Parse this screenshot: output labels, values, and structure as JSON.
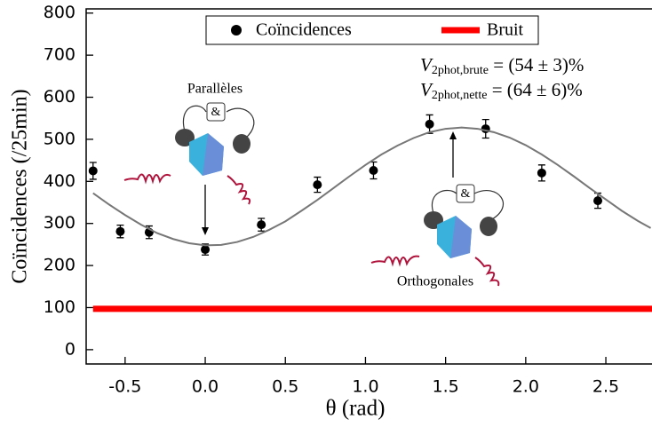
{
  "chart_data": {
    "type": "scatter",
    "xlabel": "θ (rad)",
    "ylabel": "Coïncidences (/25min)",
    "xlim": [
      -0.743,
      2.788
    ],
    "ylim": [
      -34,
      810
    ],
    "xticks": [
      -0.5,
      {
        "value": 0,
        "label": "0.0"
      },
      0.5,
      {
        "value": 1,
        "label": "1.0"
      },
      1.5,
      {
        "value": 2,
        "label": "2.0"
      },
      2.5
    ],
    "yticks": [
      0,
      100,
      200,
      300,
      400,
      500,
      600,
      700,
      800
    ],
    "legend": "top",
    "series": [
      {
        "name": "Coïncidences",
        "type": "scatter",
        "color": "#000000",
        "x": [
          -0.7,
          -0.53,
          -0.35,
          0,
          0.35,
          0.7,
          1.05,
          1.4,
          1.75,
          2.1,
          2.45
        ],
        "values": [
          425,
          281,
          279,
          238,
          297,
          392,
          426,
          536,
          525,
          420,
          354
        ],
        "errors": [
          20,
          15,
          15,
          13,
          15,
          18,
          20,
          22,
          22,
          19,
          18
        ]
      },
      {
        "name": "Bruit",
        "type": "line",
        "color": "#ff0000",
        "width": 7,
        "x": [
          -0.7,
          2.788
        ],
        "values": [
          97,
          97
        ]
      },
      {
        "type": "line",
        "color": "#777777",
        "width": 2,
        "x": [
          -0.7,
          -0.6,
          -0.5,
          -0.4,
          -0.3,
          -0.2,
          -0.1,
          0,
          0.1,
          0.2,
          0.3,
          0.4,
          0.5,
          0.6,
          0.7,
          0.8,
          0.9,
          1.0,
          1.1,
          1.2,
          1.3,
          1.4,
          1.5,
          1.6,
          1.7,
          1.8,
          1.9,
          2.0,
          2.1,
          2.2,
          2.3,
          2.4,
          2.5,
          2.6,
          2.7,
          2.78
        ],
        "values": [
          372,
          345,
          320,
          297,
          277,
          263,
          253,
          248,
          249,
          256,
          268,
          285,
          305,
          330,
          356,
          384,
          412,
          439,
          464,
          485,
          503,
          517,
          525,
          528,
          525,
          517,
          504,
          486,
          464,
          439,
          412,
          384,
          357,
          330,
          306,
          289
        ]
      }
    ],
    "annotations": [
      {
        "main": "V",
        "sub": "2phot,brute",
        "rest": " = (54 ± 3)%"
      },
      {
        "main": "V",
        "sub": "2phot,nette",
        "rest": " = (64 ± 6)%"
      }
    ],
    "diagrams": [
      {
        "label": "Parallèles",
        "gate": "&"
      },
      {
        "label": "Orthogonales",
        "gate": "&"
      }
    ]
  }
}
